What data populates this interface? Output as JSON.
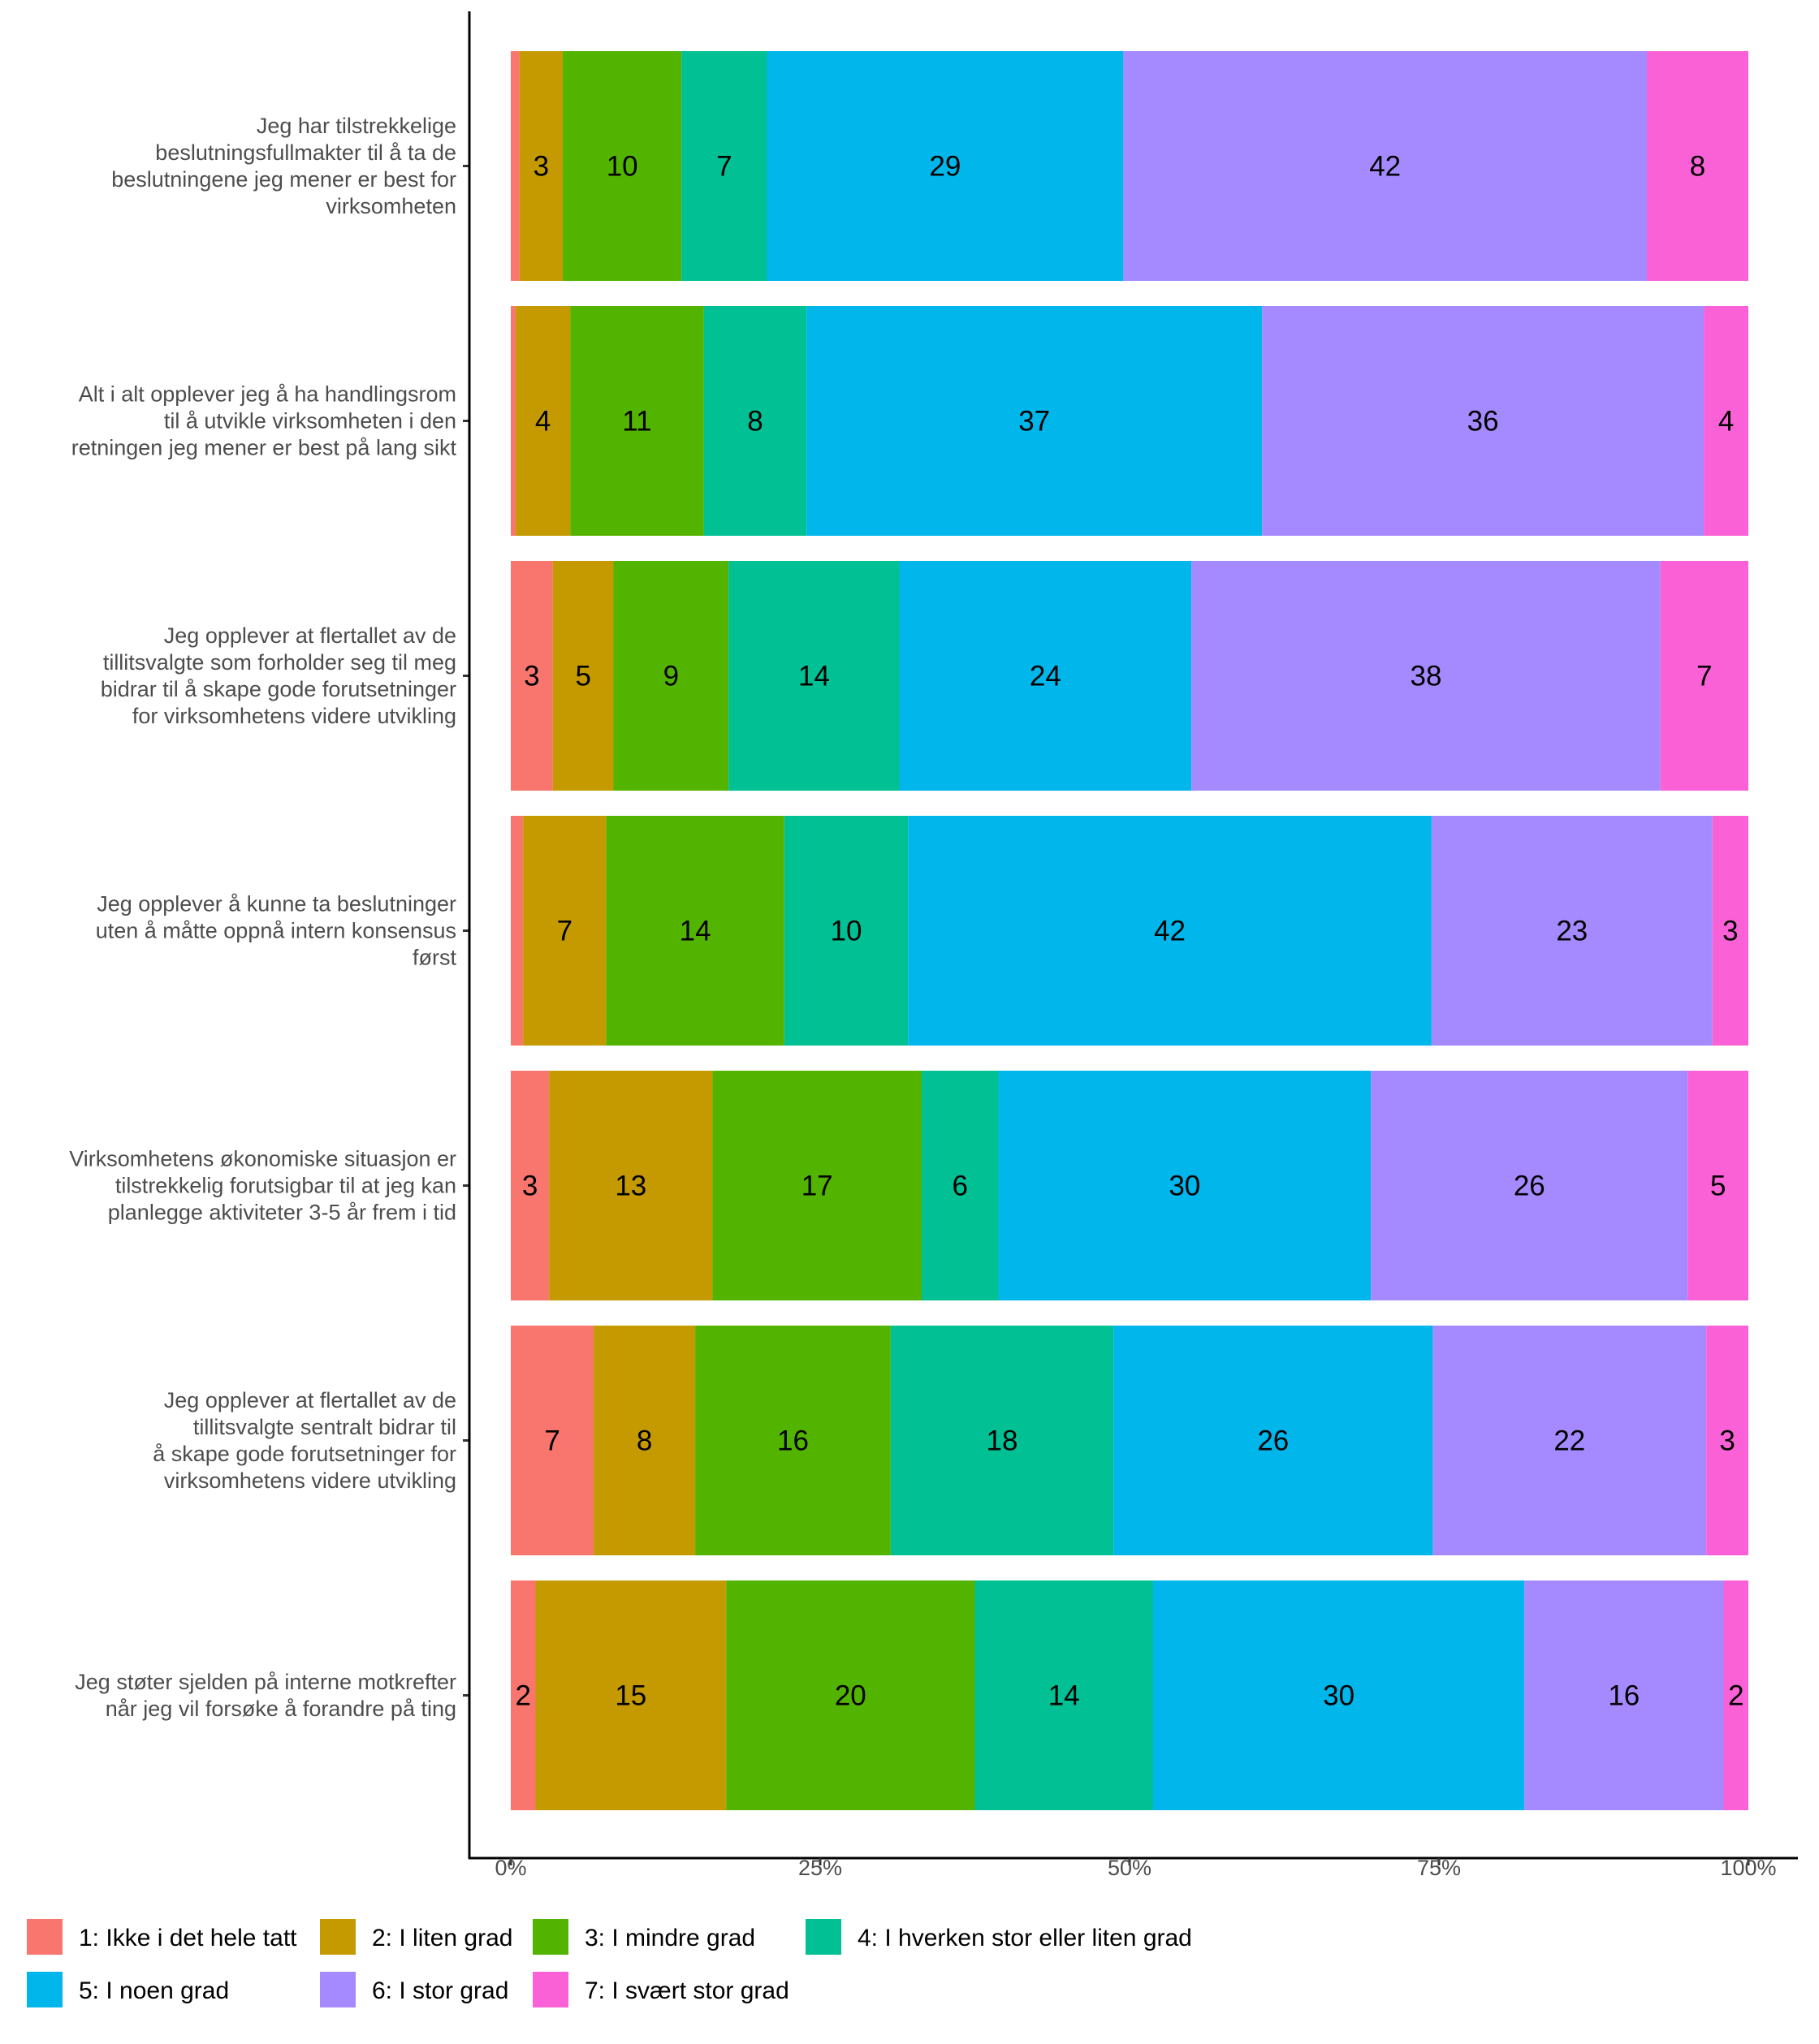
{
  "chart_data": {
    "type": "bar",
    "orientation": "horizontal",
    "stacked": true,
    "normalized": true,
    "title": "",
    "xlabel": "",
    "ylabel": "",
    "xlim": [
      0,
      100
    ],
    "x_ticks": [
      "0%",
      "25%",
      "50%",
      "75%",
      "100%"
    ],
    "x_tick_values": [
      0,
      25,
      50,
      75,
      100
    ],
    "grid": false,
    "legend_position": "bottom",
    "categories": [
      "Jeg har tilstrekkelige beslutningsfullmakter til å ta de beslutningene jeg mener er best for virksomheten",
      "Alt i alt opplever jeg å ha handlingsrom til å utvikle virksomheten i den retningen jeg mener er best på lang sikt",
      "Jeg opplever at flertallet av de tillitsvalgte som forholder seg til meg bidrar til å skape gode forutsetninger for virksomhetens videre utvikling",
      "Jeg opplever å kunne ta beslutninger uten å måtte oppnå intern konsensus først",
      "Virksomhetens økonomiske situasjon er tilstrekkelig forutsigbar til at jeg kan planlegge aktiviteter 3-5 år frem i tid",
      "Jeg opplever at flertallet av de tillitsvalgte sentralt bidrar til å skape gode forutsetninger for virksomhetens videre utvikling",
      "Jeg støter sjelden på interne motkrefter når jeg vil forsøke å forandre på ting"
    ],
    "category_label_lines": [
      [
        "Jeg har tilstrekkelige",
        "beslutningsfullmakter til å ta de",
        "beslutningene jeg mener er best for",
        "virksomheten"
      ],
      [
        "Alt i alt opplever jeg å ha handlingsrom",
        "til å utvikle virksomheten i den",
        "retningen jeg mener er best på lang sikt"
      ],
      [
        "Jeg opplever at flertallet av de",
        "tillitsvalgte som forholder seg til meg",
        "bidrar til å skape gode forutsetninger",
        "for virksomhetens videre utvikling"
      ],
      [
        "Jeg opplever å kunne ta beslutninger",
        "uten å måtte oppnå intern konsensus",
        "først"
      ],
      [
        "Virksomhetens økonomiske situasjon er",
        "tilstrekkelig forutsigbar til at jeg kan",
        "planlegge aktiviteter 3-5 år frem i tid"
      ],
      [
        "Jeg opplever at flertallet av de",
        "tillitsvalgte sentralt bidrar til",
        "å skape gode forutsetninger for",
        "virksomhetens videre utvikling"
      ],
      [
        "Jeg støter sjelden på interne motkrefter",
        "når jeg vil forsøke å forandre på ting"
      ]
    ],
    "series": [
      {
        "name": "1: Ikke i det hele tatt",
        "color": "#F8766D",
        "values": [
          0.7,
          0.4,
          3.4,
          1.0,
          3.1,
          6.7,
          2.0
        ],
        "labels": [
          "",
          "",
          "3",
          "",
          "3",
          "7",
          "2"
        ]
      },
      {
        "name": "2: I liten grad",
        "color": "#C49A00",
        "values": [
          3.5,
          4.4,
          4.9,
          6.7,
          13.2,
          8.2,
          15.4
        ],
        "labels": [
          "3",
          "4",
          "5",
          "7",
          "13",
          "8",
          "15"
        ]
      },
      {
        "name": "3: I mindre grad",
        "color": "#53B400",
        "values": [
          9.6,
          10.8,
          9.3,
          14.4,
          16.9,
          15.8,
          20.1
        ],
        "labels": [
          "10",
          "11",
          "9",
          "14",
          "17",
          "16",
          "20"
        ]
      },
      {
        "name": "4: I hverken stor eller liten grad",
        "color": "#00C094",
        "values": [
          6.9,
          8.3,
          13.8,
          10.0,
          6.2,
          18.0,
          14.4
        ],
        "labels": [
          "7",
          "8",
          "14",
          "10",
          "6",
          "18",
          "14"
        ]
      },
      {
        "name": "5: I noen grad",
        "color": "#00B6EB",
        "values": [
          28.8,
          36.8,
          23.6,
          42.3,
          30.1,
          25.8,
          30.0
        ],
        "labels": [
          "29",
          "37",
          "24",
          "42",
          "30",
          "26",
          "30"
        ]
      },
      {
        "name": "6: I stor grad",
        "color": "#A58AFF",
        "values": [
          42.3,
          35.7,
          37.9,
          22.7,
          25.6,
          22.1,
          16.1
        ],
        "labels": [
          "42",
          "36",
          "38",
          "23",
          "26",
          "22",
          "16"
        ]
      },
      {
        "name": "7: I svært stor grad",
        "color": "#FB61D7",
        "values": [
          8.2,
          3.6,
          7.1,
          2.9,
          4.9,
          3.4,
          2.0
        ],
        "labels": [
          "8",
          "4",
          "7",
          "3",
          "5",
          "3",
          "2"
        ]
      }
    ]
  }
}
